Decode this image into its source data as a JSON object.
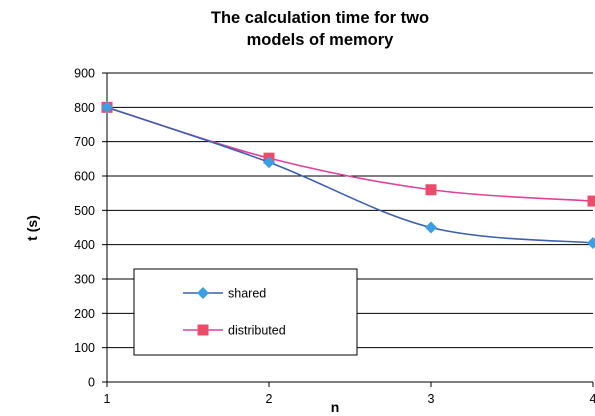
{
  "chart_data": {
    "type": "line",
    "title": "The calculation time for two models of memory",
    "title_lines": [
      "The calculation time for two",
      "models of memory"
    ],
    "xlabel": "n",
    "ylabel": "t (s)",
    "x": [
      1,
      2,
      3,
      4
    ],
    "x_ticks": [
      "1",
      "2",
      "3",
      "4"
    ],
    "y_ticks": [
      "0",
      "100",
      "200",
      "300",
      "400",
      "500",
      "600",
      "700",
      "800",
      "900"
    ],
    "ylim": [
      0,
      900
    ],
    "xlim": [
      1,
      4
    ],
    "grid": true,
    "legend_position": "bottom-left",
    "series": [
      {
        "name": "shared",
        "values": [
          800,
          640,
          450,
          405
        ],
        "color": "#3d5fb0",
        "marker": "diamond",
        "marker_color": "#3aa0e6"
      },
      {
        "name": "distributed",
        "values": [
          800,
          652,
          560,
          527
        ],
        "color": "#e0429a",
        "marker": "square",
        "marker_color": "#ee4b6a"
      }
    ]
  }
}
